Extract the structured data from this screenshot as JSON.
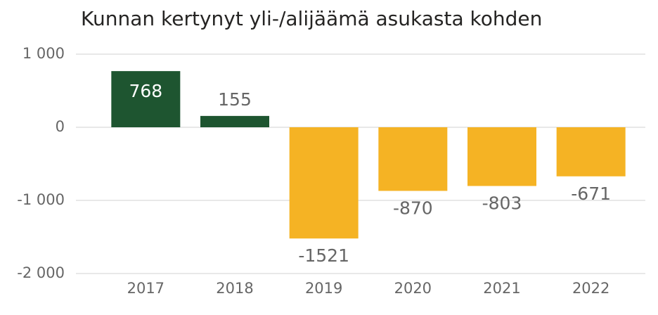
{
  "chart_data": {
    "type": "bar",
    "title": "Kunnan kertynyt yli-/alijäämä asukasta kohden",
    "categories": [
      "2017",
      "2018",
      "2019",
      "2020",
      "2021",
      "2022"
    ],
    "values": [
      768,
      155,
      -1521,
      -870,
      -803,
      -671
    ],
    "colors": [
      "#1e5530",
      "#1e5530",
      "#f5b324",
      "#f5b324",
      "#f5b324",
      "#f5b324"
    ],
    "ylim": [
      -2000,
      1000
    ],
    "yticks": [
      {
        "value": 1000,
        "label": "1 000"
      },
      0,
      {
        "value": -1000,
        "label": "-1 000"
      },
      {
        "value": -2000,
        "label": "-2 000"
      }
    ],
    "grid": true
  }
}
